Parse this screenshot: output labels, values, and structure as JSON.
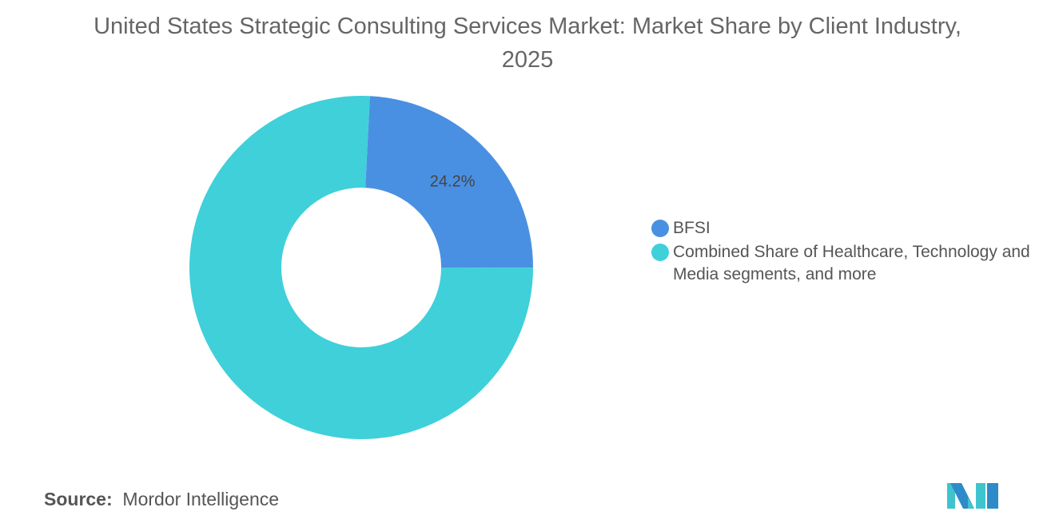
{
  "chart_data": {
    "type": "pie",
    "subtype": "donut",
    "title": "United States Strategic Consulting Services Market: Market Share by Client Industry, 2025",
    "slices": [
      {
        "name": "BFSI",
        "value": 24.2,
        "label": "24.2%",
        "color": "#4a90e2"
      },
      {
        "name": "Combined Share of Healthcare, Technology and Media segments, and more",
        "value": 75.8,
        "label": "",
        "color": "#3fd0da"
      }
    ],
    "legend_position": "right"
  },
  "source": {
    "label": "Source:",
    "value": "Mordor Intelligence"
  },
  "logo": {
    "text": "Mordor Intelligence",
    "colors": [
      "#2e8bc9",
      "#3fc4cf"
    ]
  }
}
